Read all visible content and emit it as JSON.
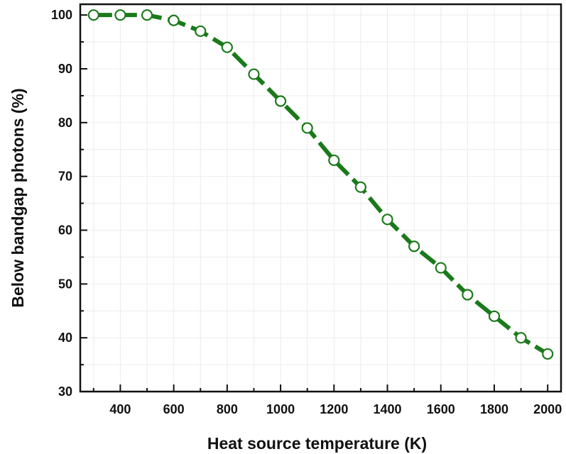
{
  "chart_data": {
    "type": "line",
    "title": "",
    "xlabel": "Heat source temperature (K)",
    "ylabel": "Below bandgap photons (%)",
    "xlim": [
      250,
      2050
    ],
    "ylim": [
      30,
      102
    ],
    "xticks": [
      400,
      600,
      800,
      1000,
      1200,
      1400,
      1600,
      1800,
      2000
    ],
    "yticks": [
      30,
      40,
      50,
      60,
      70,
      80,
      90,
      100
    ],
    "grid": true,
    "legend": "none",
    "series": [
      {
        "color": "#1a7a1a",
        "marker": "open-circle",
        "line_style": "dashed",
        "x": [
          300,
          400,
          500,
          600,
          700,
          800,
          900,
          1000,
          1100,
          1200,
          1300,
          1400,
          1500,
          1600,
          1700,
          1800,
          1900,
          2000
        ],
        "y": [
          100,
          100,
          100,
          99,
          97,
          94,
          89,
          84,
          79,
          73,
          68,
          62,
          57,
          53,
          48,
          44,
          40,
          37
        ]
      }
    ]
  }
}
